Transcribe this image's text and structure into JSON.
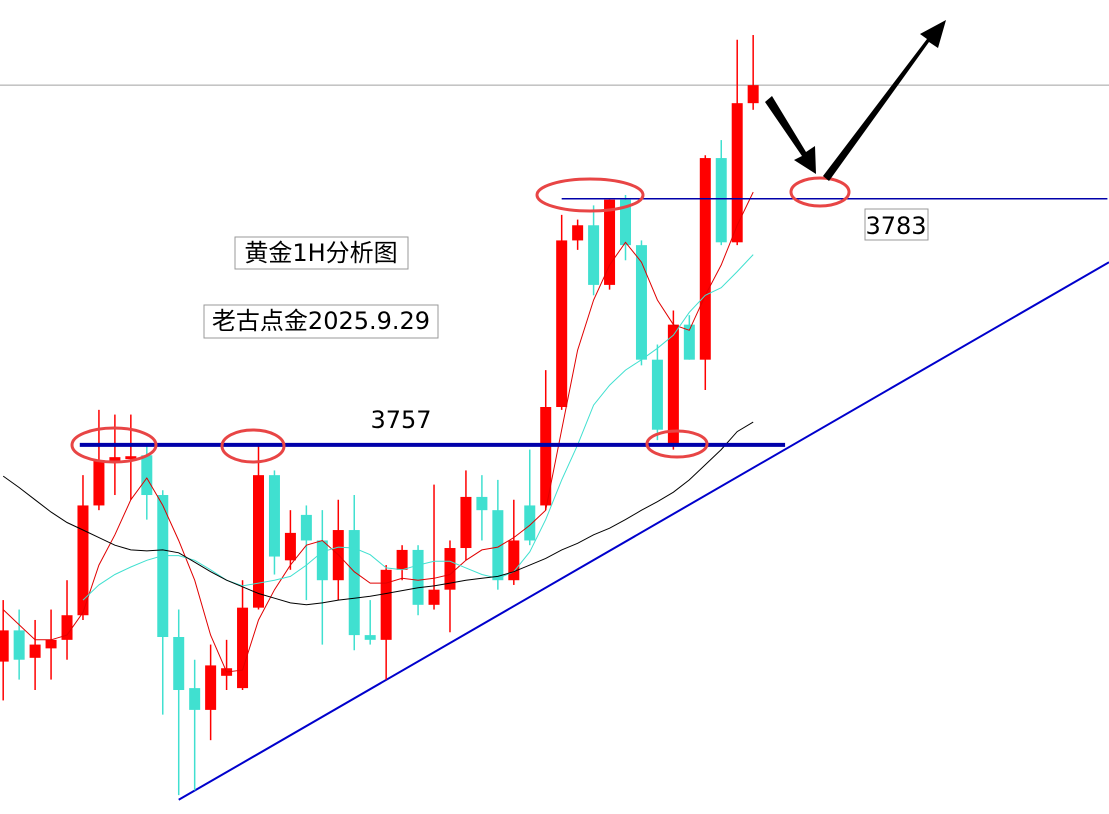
{
  "chart_data": {
    "type": "candlestick",
    "title": "黄金1H分析图",
    "subtitle": "老古点金2025.9.29",
    "ylim": [
      3718,
      3804
    ],
    "xlim": [
      -0.2,
      69.3
    ],
    "up_color": "#ff0000",
    "down_color": "#40e0d0",
    "open": [
      3734.1,
      3737.4,
      3734.5,
      3735.5,
      3736.4,
      3739.0,
      3750.6,
      3755.1,
      3755.5,
      3755.9,
      3751.7,
      3736.7,
      3731.3,
      3729.0,
      3732.6,
      3731.3,
      3739.8,
      3753.8,
      3744.8,
      3749.6,
      3746.9,
      3742.7,
      3748.0,
      3736.9,
      3736.4,
      3743.8,
      3745.9,
      3740.1,
      3741.7,
      3746.1,
      3751.5,
      3750.1,
      3742.7,
      3750.6,
      3750.6,
      3761.0,
      3778.6,
      3780.2,
      3773.9,
      3782.9,
      3778.1,
      3766.0,
      3757.0,
      3769.7,
      3766.0,
      3787.3,
      3778.4,
      3793.1
    ],
    "high": [
      3740.6,
      3739.6,
      3738.5,
      3739.6,
      3742.7,
      3753.8,
      3760.7,
      3760.2,
      3760.2,
      3757.0,
      3752.2,
      3739.6,
      3734.3,
      3735.9,
      3736.4,
      3742.7,
      3757.0,
      3754.3,
      3750.1,
      3750.6,
      3750.1,
      3751.2,
      3751.7,
      3740.6,
      3744.3,
      3746.4,
      3746.4,
      3752.8,
      3746.9,
      3754.3,
      3753.8,
      3753.3,
      3751.2,
      3756.5,
      3764.9,
      3781.3,
      3780.8,
      3782.3,
      3782.9,
      3783.4,
      3778.6,
      3767.6,
      3771.2,
      3770.7,
      3787.6,
      3789.2,
      3799.8,
      3800.3
    ],
    "low": [
      3730.0,
      3732.2,
      3731.1,
      3732.2,
      3734.3,
      3738.5,
      3750.1,
      3751.7,
      3751.2,
      3749.1,
      3728.5,
      3720.0,
      3720.5,
      3725.8,
      3731.1,
      3731.1,
      3739.6,
      3743.3,
      3743.8,
      3740.6,
      3735.9,
      3740.6,
      3735.3,
      3735.9,
      3732.2,
      3742.7,
      3739.0,
      3739.6,
      3737.2,
      3744.8,
      3746.9,
      3741.7,
      3742.2,
      3746.4,
      3750.1,
      3760.7,
      3777.6,
      3772.8,
      3773.4,
      3776.5,
      3765.4,
      3757.5,
      3756.5,
      3766.0,
      3762.8,
      3778.1,
      3778.1,
      3792.4
    ],
    "close": [
      3737.4,
      3734.3,
      3735.9,
      3736.4,
      3739.0,
      3750.6,
      3755.4,
      3755.7,
      3755.8,
      3751.7,
      3736.7,
      3731.1,
      3729.0,
      3733.7,
      3733.4,
      3739.8,
      3753.8,
      3745.2,
      3747.7,
      3746.9,
      3742.7,
      3748.0,
      3736.9,
      3736.4,
      3743.8,
      3745.9,
      3740.1,
      3741.7,
      3746.1,
      3751.5,
      3750.1,
      3742.7,
      3746.9,
      3746.9,
      3761.0,
      3778.6,
      3780.2,
      3773.9,
      3782.9,
      3778.1,
      3766.0,
      3758.6,
      3769.7,
      3766.0,
      3787.3,
      3778.4,
      3793.1,
      3795.0
    ],
    "moving_averages": [
      {
        "color": "#e00000",
        "values": [
          3739.6,
          3738.0,
          3736.4,
          3736.4,
          3736.9,
          3739.3,
          3744.3,
          3747.5,
          3751.2,
          3753.5,
          3750.6,
          3746.9,
          3742.7,
          3736.9,
          3733.0,
          3733.2,
          3738.5,
          3741.7,
          3744.3,
          3746.4,
          3746.9,
          3745.4,
          3743.6,
          3742.4,
          3742.4,
          3742.9,
          3742.7,
          3742.9,
          3743.3,
          3744.8,
          3745.9,
          3746.2,
          3747.2,
          3748.5,
          3750.1,
          3758.6,
          3767.0,
          3772.3,
          3776.0,
          3778.4,
          3776.3,
          3772.3,
          3769.7,
          3769.1,
          3772.8,
          3776.0,
          3780.2,
          3783.7
        ]
      },
      {
        "color": "#40e0d0",
        "values": [
          null,
          null,
          null,
          null,
          null,
          3740.6,
          3742.2,
          3743.3,
          3744.1,
          3744.8,
          3745.3,
          3745.3,
          3744.8,
          3743.8,
          3742.7,
          3742.1,
          3742.4,
          3742.7,
          3743.1,
          3744.3,
          3745.7,
          3746.2,
          3746.1,
          3745.4,
          3744.0,
          3743.8,
          3744.3,
          3744.7,
          3744.7,
          3744.0,
          3743.3,
          3742.9,
          3743.6,
          3745.7,
          3749.1,
          3753.3,
          3757.0,
          3761.2,
          3763.3,
          3764.9,
          3766.0,
          3767.2,
          3768.6,
          3771.0,
          3772.8,
          3773.6,
          3775.3,
          3777.1
        ]
      },
      {
        "color": "#000000",
        "values": [
          3753.7,
          3752.5,
          3751.2,
          3749.9,
          3748.8,
          3748.0,
          3747.2,
          3746.4,
          3745.9,
          3745.8,
          3745.9,
          3745.6,
          3744.6,
          3743.6,
          3742.7,
          3742.0,
          3741.3,
          3740.8,
          3740.3,
          3740.1,
          3740.3,
          3740.6,
          3740.8,
          3741.0,
          3741.3,
          3741.6,
          3741.9,
          3742.1,
          3742.4,
          3742.7,
          3742.9,
          3743.1,
          3743.6,
          3744.3,
          3745.0,
          3745.9,
          3746.6,
          3747.5,
          3748.2,
          3749.1,
          3750.1,
          3751.0,
          3752.0,
          3753.3,
          3754.9,
          3756.5,
          3758.4,
          3759.4
        ]
      }
    ],
    "levels": [
      {
        "value": 3757,
        "label": "3757",
        "from": 4.8,
        "to": 49,
        "color": "#0000aa",
        "width": 4
      },
      {
        "value": 3783,
        "label": "3783",
        "from": 35,
        "to": 69.2,
        "color": "#0000aa",
        "width": 1.5
      }
    ],
    "price_line": 3795.0,
    "trendline": {
      "x": [
        11,
        69.3
      ],
      "values": [
        3719.5,
        3776.3
      ],
      "color": "#0000cc"
    }
  }
}
